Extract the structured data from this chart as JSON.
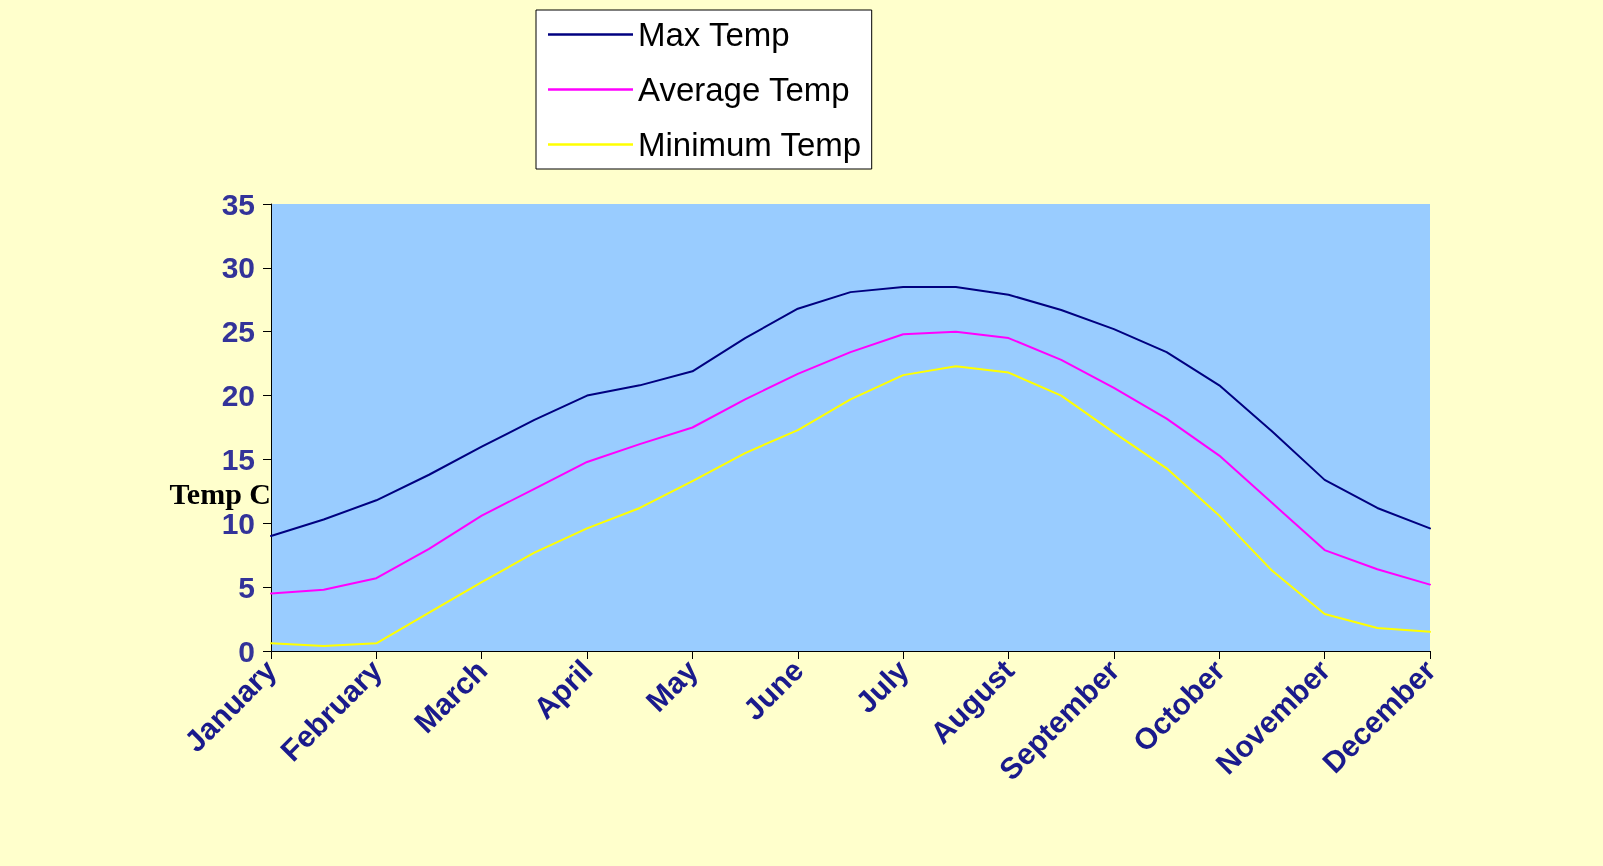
{
  "chart_data": {
    "type": "line",
    "ylabel": "Temp C",
    "categories": [
      "January",
      null,
      "February",
      null,
      "March",
      null,
      "April",
      null,
      "May",
      null,
      "June",
      null,
      "July",
      null,
      "August",
      null,
      "September",
      null,
      "October",
      null,
      "November",
      null,
      "December"
    ],
    "ylim": [
      0,
      35
    ],
    "yticks": [
      0,
      5,
      10,
      15,
      20,
      25,
      30,
      35
    ],
    "grid": false,
    "legend": "top",
    "series": [
      {
        "name": "Max Temp",
        "color": "#000080",
        "values": [
          9.0,
          10.3,
          11.8,
          13.8,
          16.0,
          18.1,
          20.0,
          20.8,
          21.9,
          24.5,
          26.8,
          28.1,
          28.5,
          28.5,
          27.9,
          26.7,
          25.2,
          23.4,
          20.8,
          17.2,
          13.4,
          11.2,
          9.6
        ]
      },
      {
        "name": "Average Temp",
        "color": "#ff00ff",
        "values": [
          4.5,
          4.8,
          5.7,
          8.0,
          10.6,
          12.7,
          14.8,
          16.2,
          17.5,
          19.7,
          21.7,
          23.4,
          24.8,
          25.0,
          24.5,
          22.8,
          20.6,
          18.2,
          15.3,
          11.6,
          7.9,
          6.4,
          5.2
        ]
      },
      {
        "name": "Minimum Temp",
        "color": "#ffff00",
        "values": [
          0.6,
          0.4,
          0.6,
          3.0,
          5.4,
          7.7,
          9.6,
          11.2,
          13.3,
          15.5,
          17.3,
          19.7,
          21.6,
          22.3,
          21.8,
          20.0,
          17.1,
          14.3,
          10.6,
          6.3,
          2.9,
          1.8,
          1.5
        ]
      }
    ]
  }
}
